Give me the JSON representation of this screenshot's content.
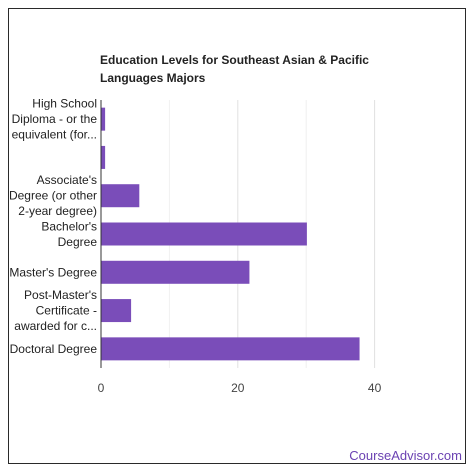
{
  "footer": {
    "brand": "CourseAdvisor.com"
  },
  "colors": {
    "bar": "#7a4db9",
    "grid": "#e0e0e0",
    "axis": "#333333"
  },
  "chart_data": {
    "type": "bar",
    "orientation": "horizontal",
    "title": "Education Levels for Southeast Asian & Pacific Languages Majors",
    "categories": [
      [
        "High School",
        "Diploma - or the",
        "equivalent (for..."
      ],
      [],
      [
        "Associate's",
        "Degree (or other",
        "2-year degree)"
      ],
      [
        "Bachelor's",
        "Degree"
      ],
      [
        "Master's Degree"
      ],
      [
        "Post-Master's",
        "Certificate -",
        "awarded for c..."
      ],
      [
        "Doctoral Degree"
      ]
    ],
    "values": [
      0.6,
      0.6,
      5.6,
      30.1,
      21.7,
      4.4,
      37.8
    ],
    "xlim": [
      0,
      50
    ],
    "xticks": [
      0,
      20,
      40
    ],
    "grid": true,
    "legend": "none"
  }
}
